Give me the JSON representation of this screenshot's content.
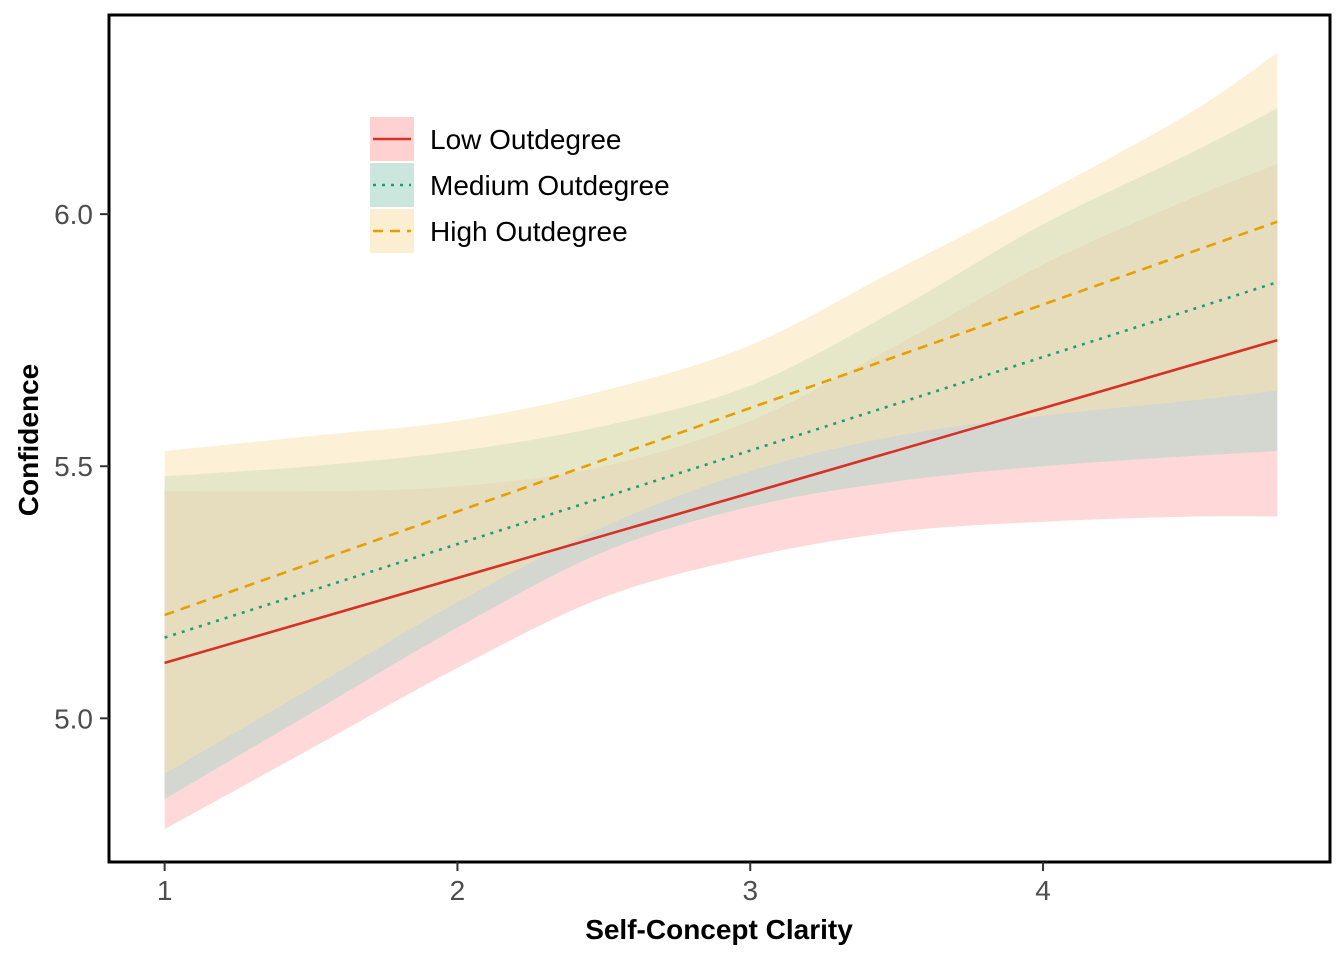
{
  "chart_data": {
    "type": "line",
    "title": "",
    "xlabel": "Self-Concept Clarity",
    "ylabel": "Confidence",
    "xlim": [
      0.81,
      4.98
    ],
    "ylim": [
      4.715,
      6.395
    ],
    "xticks": [
      1,
      2,
      3,
      4
    ],
    "yticks": [
      5.0,
      5.5,
      6.0
    ],
    "xtick_labels": [
      "1",
      "2",
      "3",
      "4"
    ],
    "ytick_labels": [
      "5.0",
      "5.5",
      "6.0"
    ],
    "grid": false,
    "legend": {
      "position": "top-left"
    },
    "series": [
      {
        "name": "Low Outdegree",
        "color": "#d73027",
        "fill": "#ffb3b3",
        "dash": "solid",
        "x": [
          1,
          4.8
        ],
        "y": [
          5.11,
          5.75
        ],
        "band_x": [
          1,
          1.5,
          2,
          2.5,
          3,
          3.5,
          4,
          4.5,
          4.8
        ],
        "band_lower": [
          4.78,
          4.94,
          5.1,
          5.24,
          5.32,
          5.37,
          5.39,
          5.4,
          5.4
        ],
        "band_upper": [
          5.45,
          5.45,
          5.46,
          5.5,
          5.59,
          5.74,
          5.9,
          6.03,
          6.1
        ]
      },
      {
        "name": "Medium Outdegree",
        "color": "#1b9e77",
        "fill": "#a8d5c5",
        "dash": "dotted",
        "x": [
          1,
          4.8
        ],
        "y": [
          5.16,
          5.865
        ],
        "band_x": [
          1,
          1.5,
          2,
          2.5,
          3,
          3.5,
          4,
          4.5,
          4.8
        ],
        "band_lower": [
          4.84,
          5.01,
          5.18,
          5.33,
          5.42,
          5.47,
          5.5,
          5.52,
          5.53
        ],
        "band_upper": [
          5.48,
          5.5,
          5.53,
          5.58,
          5.66,
          5.81,
          5.98,
          6.12,
          6.21
        ]
      },
      {
        "name": "High Outdegree",
        "color": "#e69f00",
        "fill": "#fae3b0",
        "dash": "dashed",
        "x": [
          1,
          4.8
        ],
        "y": [
          5.205,
          5.985
        ],
        "band_x": [
          1,
          1.5,
          2,
          2.5,
          3,
          3.5,
          4,
          4.5,
          4.8
        ],
        "band_lower": [
          4.89,
          5.06,
          5.23,
          5.38,
          5.49,
          5.56,
          5.6,
          5.63,
          5.65
        ],
        "band_upper": [
          5.53,
          5.56,
          5.59,
          5.65,
          5.74,
          5.89,
          6.04,
          6.2,
          6.32
        ]
      }
    ]
  }
}
